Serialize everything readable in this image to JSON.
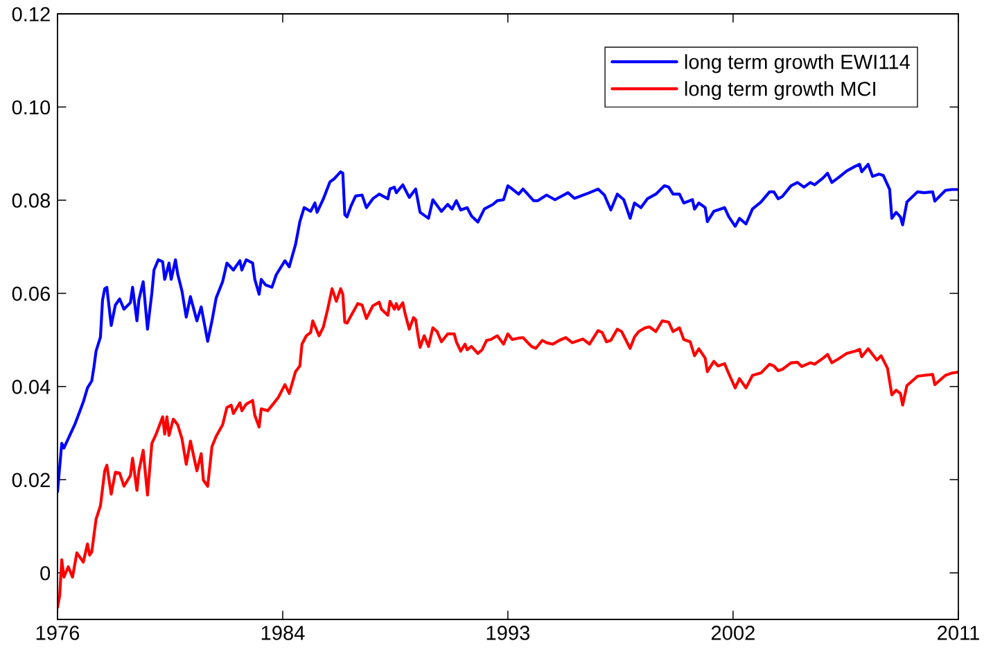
{
  "chart_data": {
    "type": "line",
    "legend": "top right",
    "xlim": [
      "1976-01",
      "2011-01"
    ],
    "xticks": [
      {
        "value": "1976-01",
        "label": "1976"
      },
      {
        "value": "1984-10",
        "label": "1984"
      },
      {
        "value": "1993-07",
        "label": "1993"
      },
      {
        "value": "2002-04",
        "label": "2002"
      },
      {
        "value": "2011-01",
        "label": "2011"
      }
    ],
    "ylim": [
      -0.01,
      0.12
    ],
    "yticks": [
      0,
      {
        "value": 0.02,
        "label": "0.02"
      },
      {
        "value": 0.04,
        "label": "0.04"
      },
      {
        "value": 0.06,
        "label": "0.06"
      },
      {
        "value": 0.08,
        "label": "0.08"
      },
      {
        "value": 0.1,
        "label": "0.10"
      },
      {
        "value": 0.12,
        "label": "0.12"
      }
    ],
    "series": [
      {
        "name": "long term growth EWI114",
        "color": "#0000ff",
        "x": [
          "1976-01",
          "1976-03",
          "1976-04",
          "1976-09",
          "1976-11",
          "1977-01",
          "1977-03",
          "1977-05",
          "1977-06",
          "1977-07",
          "1977-09",
          "1977-10",
          "1977-11",
          "1977-12",
          "1978-02",
          "1978-04",
          "1978-06",
          "1978-08",
          "1978-11",
          "1978-12",
          "1979-02",
          "1979-03",
          "1979-05",
          "1979-07",
          "1979-09",
          "1979-10",
          "1979-12",
          "1980-02",
          "1980-03",
          "1980-05",
          "1980-06",
          "1980-08",
          "1980-09",
          "1980-11",
          "1981-01",
          "1981-03",
          "1981-06",
          "1981-08",
          "1981-11",
          "1982-01",
          "1982-03",
          "1982-06",
          "1982-08",
          "1982-11",
          "1983-02",
          "1983-03",
          "1983-05",
          "1983-08",
          "1983-09",
          "1983-11",
          "1983-12",
          "1984-02",
          "1984-05",
          "1984-07",
          "1984-11",
          "1985-01",
          "1985-04",
          "1985-06",
          "1985-08",
          "1985-11",
          "1986-01",
          "1986-02",
          "1986-05",
          "1986-08",
          "1986-10",
          "1987-01",
          "1987-02",
          "1987-03",
          "1987-04",
          "1987-06",
          "1987-08",
          "1987-11",
          "1988-01",
          "1988-04",
          "1988-07",
          "1988-11",
          "1988-12",
          "1989-02",
          "1989-03",
          "1989-06",
          "1989-09",
          "1989-12",
          "1990-02",
          "1990-06",
          "1990-08",
          "1990-12",
          "1991-03",
          "1991-05",
          "1991-07",
          "1991-09",
          "1991-12",
          "1992-02",
          "1992-05",
          "1992-08",
          "1992-12",
          "1993-02",
          "1993-05",
          "1993-07",
          "1993-09",
          "1993-12",
          "1994-02",
          "1994-07",
          "1994-09",
          "1995-01",
          "1995-05",
          "1995-11",
          "1996-02",
          "1996-09",
          "1997-01",
          "1997-04",
          "1997-07",
          "1997-10",
          "1998-01",
          "1998-04",
          "1998-06",
          "1998-09",
          "1998-12",
          "1999-04",
          "1999-08",
          "1999-10",
          "1999-12",
          "2000-03",
          "2000-05",
          "2000-09",
          "2000-10",
          "2000-12",
          "2001-03",
          "2001-04",
          "2001-07",
          "2001-12",
          "2002-02",
          "2002-05",
          "2002-07",
          "2002-10",
          "2003-01",
          "2003-05",
          "2003-09",
          "2003-11",
          "2004-01",
          "2004-03",
          "2004-07",
          "2004-10",
          "2005-01",
          "2005-04",
          "2005-06",
          "2005-10",
          "2005-12",
          "2006-02",
          "2006-05",
          "2006-09",
          "2007-01",
          "2007-03",
          "2007-04",
          "2007-07",
          "2007-09",
          "2007-12",
          "2008-02",
          "2008-05",
          "2008-06",
          "2008-08",
          "2008-10",
          "2008-11",
          "2009-01",
          "2009-06",
          "2009-09",
          "2010-01",
          "2010-02",
          "2010-07",
          "2010-10",
          "2011-01"
        ],
        "values": [
          0.0174,
          0.0278,
          0.0268,
          0.0318,
          0.0342,
          0.0367,
          0.0397,
          0.0412,
          0.0442,
          0.0476,
          0.0506,
          0.0586,
          0.061,
          0.0613,
          0.0531,
          0.0575,
          0.0588,
          0.0566,
          0.058,
          0.0613,
          0.0541,
          0.0586,
          0.0625,
          0.0523,
          0.0601,
          0.065,
          0.0672,
          0.0668,
          0.063,
          0.0665,
          0.063,
          0.0672,
          0.0642,
          0.0605,
          0.0549,
          0.0593,
          0.0541,
          0.0571,
          0.0497,
          0.0541,
          0.059,
          0.0625,
          0.0665,
          0.065,
          0.067,
          0.065,
          0.0672,
          0.0665,
          0.063,
          0.0598,
          0.063,
          0.0618,
          0.0613,
          0.064,
          0.067,
          0.0657,
          0.0705,
          0.0754,
          0.0784,
          0.0776,
          0.0794,
          0.0774,
          0.0803,
          0.0839,
          0.0846,
          0.0861,
          0.0858,
          0.0769,
          0.0764,
          0.0789,
          0.0809,
          0.0811,
          0.0784,
          0.0803,
          0.0813,
          0.0803,
          0.0824,
          0.0828,
          0.0816,
          0.0833,
          0.0806,
          0.0824,
          0.0774,
          0.0761,
          0.0801,
          0.0776,
          0.0791,
          0.0781,
          0.0799,
          0.0779,
          0.0784,
          0.0766,
          0.0753,
          0.0781,
          0.0791,
          0.0799,
          0.0801,
          0.0831,
          0.0824,
          0.0813,
          0.0824,
          0.0799,
          0.0799,
          0.0811,
          0.0801,
          0.0816,
          0.0804,
          0.0816,
          0.0824,
          0.0811,
          0.0779,
          0.0813,
          0.0801,
          0.0761,
          0.0794,
          0.0784,
          0.0803,
          0.0813,
          0.0831,
          0.0828,
          0.0813,
          0.0813,
          0.0794,
          0.0801,
          0.0781,
          0.0794,
          0.0784,
          0.0754,
          0.0776,
          0.0784,
          0.0764,
          0.0744,
          0.0761,
          0.0749,
          0.0781,
          0.0796,
          0.0818,
          0.0818,
          0.0803,
          0.0808,
          0.0831,
          0.0838,
          0.0828,
          0.0838,
          0.0833,
          0.0848,
          0.0858,
          0.0838,
          0.0848,
          0.0863,
          0.0873,
          0.0877,
          0.0861,
          0.0877,
          0.0851,
          0.0856,
          0.0853,
          0.0823,
          0.0761,
          0.0774,
          0.0764,
          0.0747,
          0.0796,
          0.0818,
          0.0816,
          0.0818,
          0.0798,
          0.0821,
          0.0823,
          0.0823
        ]
      },
      {
        "name": "long term growth MCI",
        "color": "#ff0000",
        "x": [
          "1976-01",
          "1976-02",
          "1976-03",
          "1976-04",
          "1976-06",
          "1976-08",
          "1976-10",
          "1977-01",
          "1977-03",
          "1977-04",
          "1977-05",
          "1977-07",
          "1977-09",
          "1977-11",
          "1977-12",
          "1978-02",
          "1978-04",
          "1978-06",
          "1978-08",
          "1978-11",
          "1978-12",
          "1979-02",
          "1979-03",
          "1979-05",
          "1979-07",
          "1979-09",
          "1979-11",
          "1980-02",
          "1980-03",
          "1980-04",
          "1980-05",
          "1980-07",
          "1980-09",
          "1980-11",
          "1981-01",
          "1981-03",
          "1981-06",
          "1981-08",
          "1981-09",
          "1981-11",
          "1982-01",
          "1982-03",
          "1982-06",
          "1982-08",
          "1982-10",
          "1982-11",
          "1983-02",
          "1983-03",
          "1983-05",
          "1983-08",
          "1983-09",
          "1983-11",
          "1983-12",
          "1984-03",
          "1984-06",
          "1984-08",
          "1984-11",
          "1985-01",
          "1985-04",
          "1985-06",
          "1985-07",
          "1985-09",
          "1985-11",
          "1985-12",
          "1986-03",
          "1986-05",
          "1986-07",
          "1986-09",
          "1986-11",
          "1987-01",
          "1987-02",
          "1987-03",
          "1987-04",
          "1987-06",
          "1987-09",
          "1987-11",
          "1988-01",
          "1988-04",
          "1988-07",
          "1988-08",
          "1988-11",
          "1988-12",
          "1989-02",
          "1989-03",
          "1989-04",
          "1989-06",
          "1989-07",
          "1989-09",
          "1989-11",
          "1989-12",
          "1990-01",
          "1990-02",
          "1990-04",
          "1990-06",
          "1990-08",
          "1990-10",
          "1990-12",
          "1991-03",
          "1991-06",
          "1991-07",
          "1991-09",
          "1991-11",
          "1991-12",
          "1992-02",
          "1992-05",
          "1992-07",
          "1992-09",
          "1992-11",
          "1993-02",
          "1993-05",
          "1993-07",
          "1993-09",
          "1993-12",
          "1994-02",
          "1994-06",
          "1994-08",
          "1994-11",
          "1995-01",
          "1995-04",
          "1995-07",
          "1995-10",
          "1996-01",
          "1996-06",
          "1996-09",
          "1997-01",
          "1997-03",
          "1997-05",
          "1997-07",
          "1997-10",
          "1997-12",
          "1998-04",
          "1998-06",
          "1998-08",
          "1998-11",
          "1999-01",
          "1999-04",
          "1999-07",
          "1999-10",
          "1999-12",
          "2000-03",
          "2000-05",
          "2000-08",
          "2000-10",
          "2000-12",
          "2001-03",
          "2001-04",
          "2001-07",
          "2001-09",
          "2001-12",
          "2002-02",
          "2002-05",
          "2002-07",
          "2002-10",
          "2003-01",
          "2003-05",
          "2003-09",
          "2003-11",
          "2004-01",
          "2004-03",
          "2004-07",
          "2004-10",
          "2004-12",
          "2005-04",
          "2005-06",
          "2005-10",
          "2005-12",
          "2006-02",
          "2006-05",
          "2006-09",
          "2007-01",
          "2007-03",
          "2007-04",
          "2007-07",
          "2007-09",
          "2007-11",
          "2008-01",
          "2008-04",
          "2008-06",
          "2008-08",
          "2008-10",
          "2008-11",
          "2009-01",
          "2009-06",
          "2009-09",
          "2010-01",
          "2010-02",
          "2010-07",
          "2010-10",
          "2011-01"
        ],
        "values": [
          -0.0074,
          -0.0049,
          0.0028,
          -0.0009,
          0.0013,
          -0.0009,
          0.0043,
          0.0023,
          0.0062,
          0.0038,
          0.0045,
          0.0115,
          0.0144,
          0.0219,
          0.0231,
          0.0169,
          0.0216,
          0.0214,
          0.0186,
          0.0209,
          0.0246,
          0.0177,
          0.0219,
          0.0263,
          0.0167,
          0.0278,
          0.0298,
          0.0335,
          0.0298,
          0.0335,
          0.0295,
          0.033,
          0.0318,
          0.0288,
          0.0233,
          0.0283,
          0.0219,
          0.0256,
          0.0199,
          0.0186,
          0.0271,
          0.0293,
          0.0318,
          0.0355,
          0.036,
          0.0342,
          0.0365,
          0.0348,
          0.0362,
          0.037,
          0.0338,
          0.0313,
          0.0352,
          0.0348,
          0.0365,
          0.0377,
          0.0404,
          0.0385,
          0.0432,
          0.0444,
          0.0491,
          0.0509,
          0.0516,
          0.0541,
          0.0509,
          0.0528,
          0.0566,
          0.061,
          0.0583,
          0.061,
          0.0598,
          0.0538,
          0.0536,
          0.0553,
          0.0578,
          0.0575,
          0.0546,
          0.0573,
          0.0581,
          0.0566,
          0.0553,
          0.0583,
          0.0566,
          0.0578,
          0.0566,
          0.058,
          0.0558,
          0.0523,
          0.0548,
          0.0543,
          0.0511,
          0.0484,
          0.0509,
          0.0486,
          0.0526,
          0.0518,
          0.0496,
          0.0513,
          0.0513,
          0.0496,
          0.0476,
          0.0491,
          0.0479,
          0.0486,
          0.0471,
          0.0479,
          0.0499,
          0.0501,
          0.0509,
          0.0491,
          0.0513,
          0.0501,
          0.0504,
          0.0505,
          0.0486,
          0.0482,
          0.0499,
          0.0494,
          0.0491,
          0.0499,
          0.0505,
          0.0494,
          0.0502,
          0.0491,
          0.052,
          0.0516,
          0.0496,
          0.0499,
          0.0523,
          0.0518,
          0.0482,
          0.0506,
          0.0518,
          0.0526,
          0.0528,
          0.0518,
          0.0541,
          0.0538,
          0.0518,
          0.0526,
          0.0501,
          0.0496,
          0.0466,
          0.0481,
          0.0461,
          0.0432,
          0.0454,
          0.0444,
          0.0449,
          0.0427,
          0.0397,
          0.0417,
          0.0397,
          0.0424,
          0.0429,
          0.0448,
          0.0444,
          0.0434,
          0.0437,
          0.0451,
          0.0452,
          0.0443,
          0.0451,
          0.0448,
          0.0461,
          0.0469,
          0.0451,
          0.0459,
          0.0471,
          0.0476,
          0.048,
          0.0464,
          0.0481,
          0.0469,
          0.0457,
          0.0466,
          0.0439,
          0.0382,
          0.0392,
          0.0385,
          0.036,
          0.0402,
          0.0422,
          0.0424,
          0.0426,
          0.0404,
          0.0424,
          0.0429,
          0.0431
        ]
      }
    ]
  }
}
